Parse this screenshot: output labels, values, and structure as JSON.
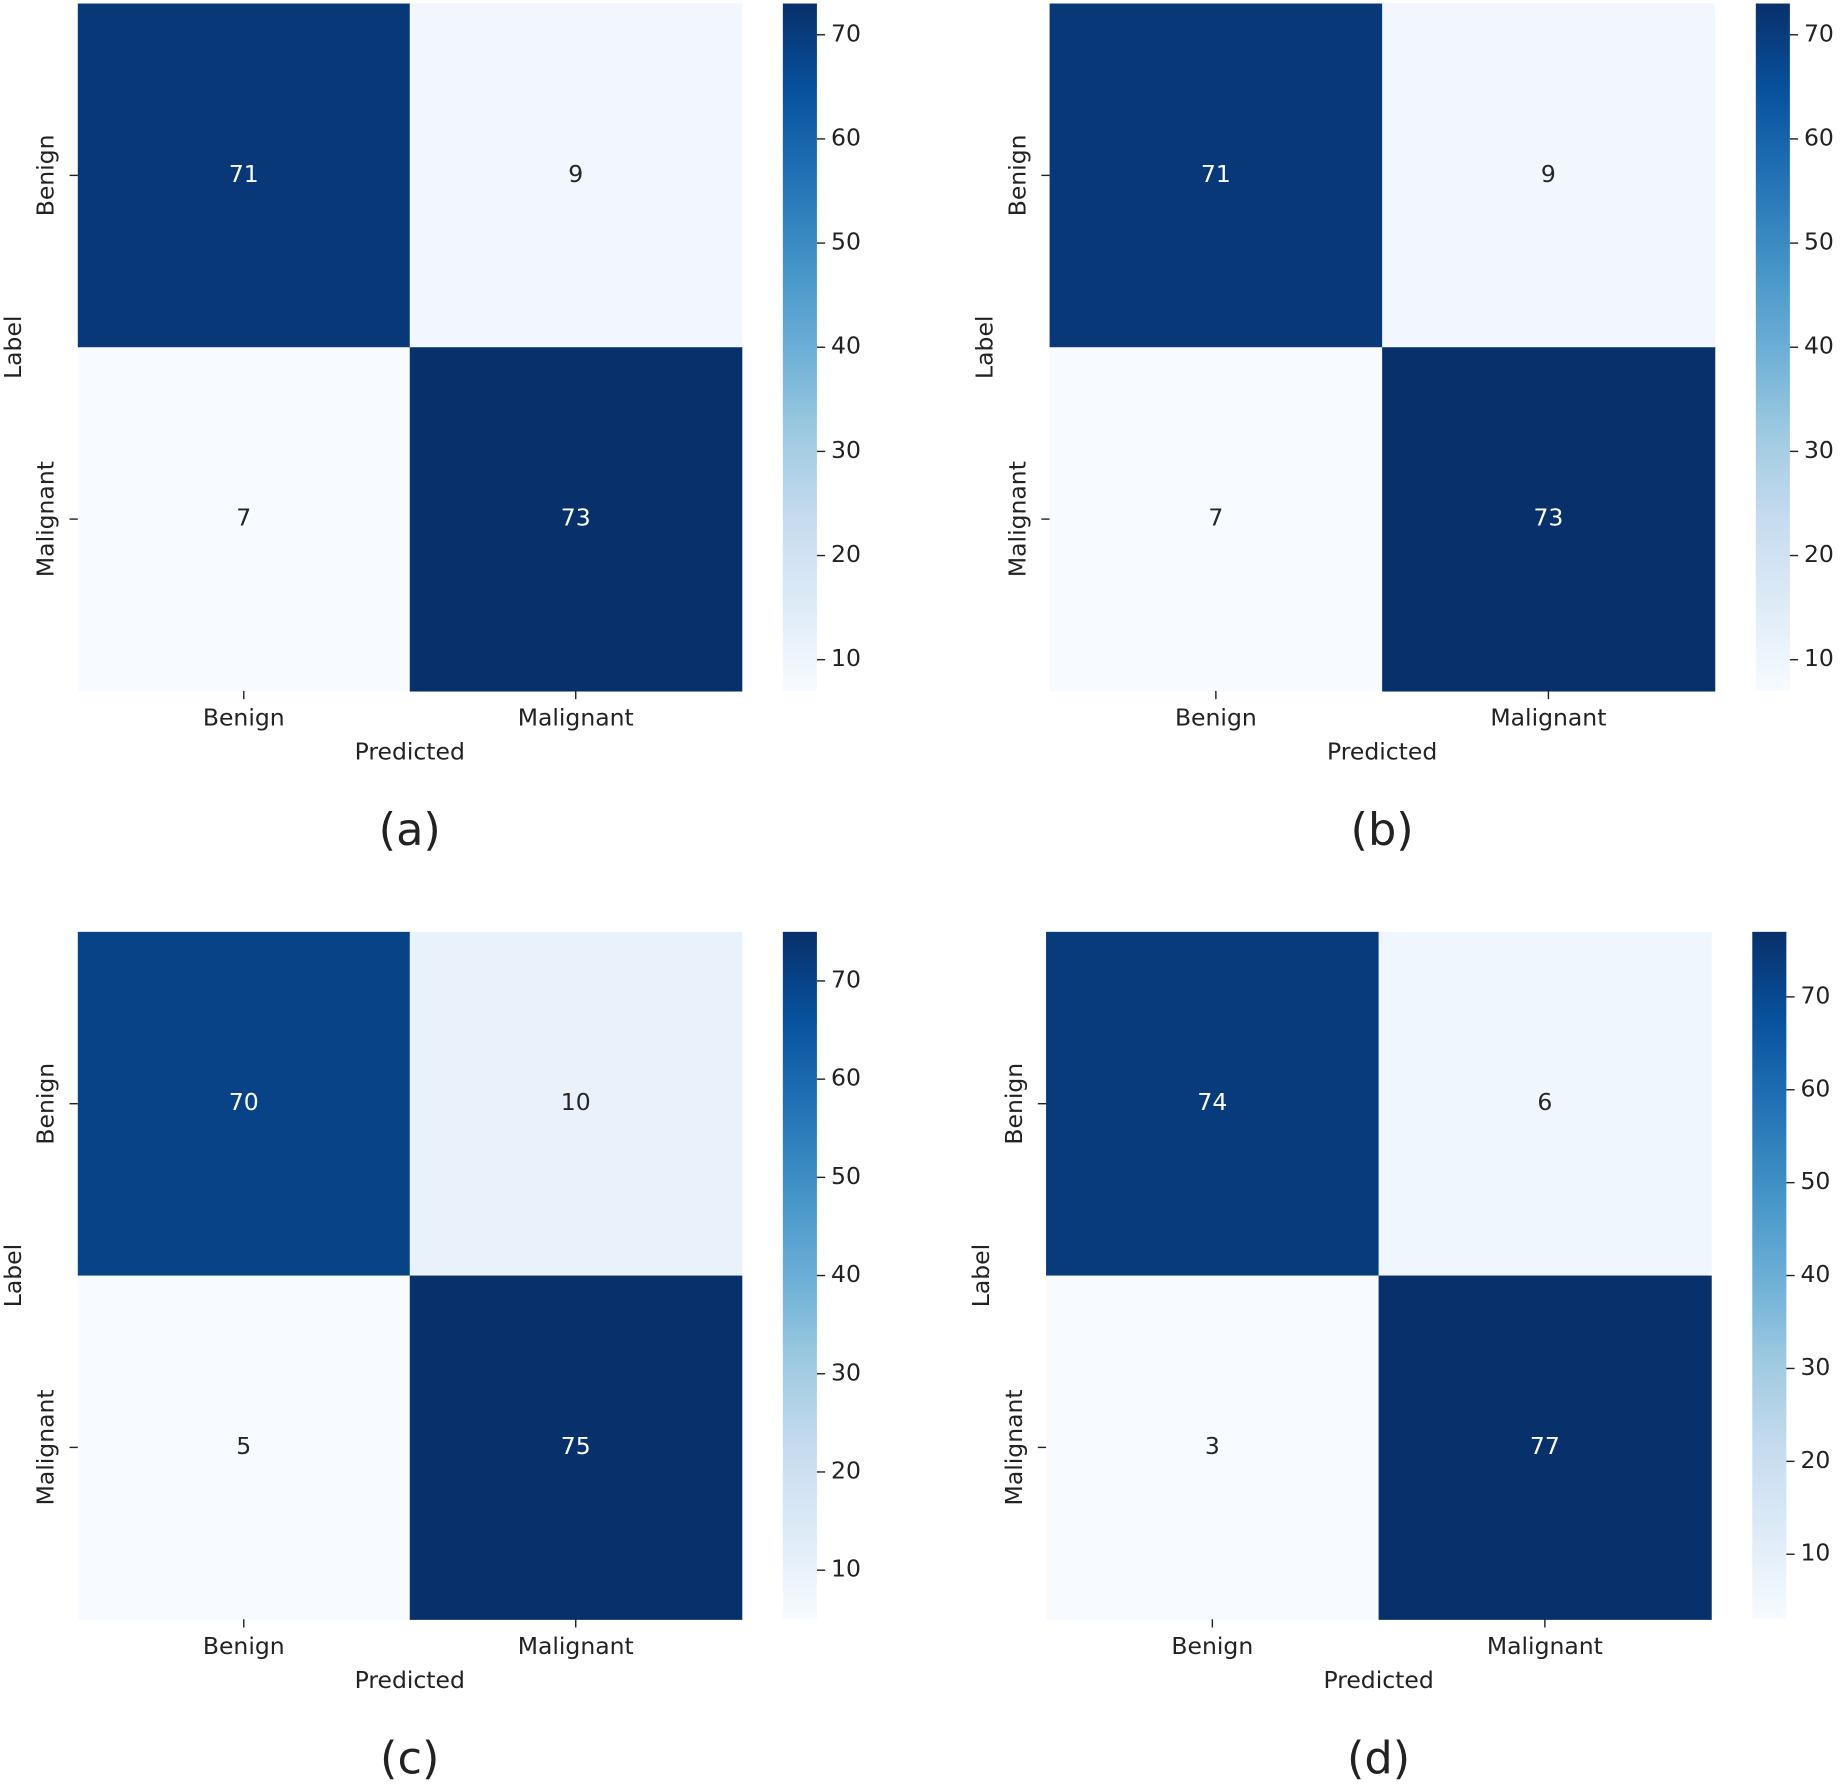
{
  "chart_data": [
    {
      "type": "heatmap",
      "caption": "(a)",
      "xlabel": "Predicted",
      "ylabel": "Label",
      "x_categories": [
        "Benign",
        "Malignant"
      ],
      "y_categories": [
        "Benign",
        "Malignant"
      ],
      "values": [
        [
          71,
          9
        ],
        [
          7,
          73
        ]
      ],
      "colormap": "Blues",
      "clim": [
        7,
        73
      ],
      "cticks": [
        10,
        20,
        30,
        40,
        50,
        60,
        70
      ]
    },
    {
      "type": "heatmap",
      "caption": "(b)",
      "xlabel": "Predicted",
      "ylabel": "Label",
      "x_categories": [
        "Benign",
        "Malignant"
      ],
      "y_categories": [
        "Benign",
        "Malignant"
      ],
      "values": [
        [
          71,
          9
        ],
        [
          7,
          73
        ]
      ],
      "colormap": "Blues",
      "clim": [
        7,
        73
      ],
      "cticks": [
        10,
        20,
        30,
        40,
        50,
        60,
        70
      ]
    },
    {
      "type": "heatmap",
      "caption": "(c)",
      "xlabel": "Predicted",
      "ylabel": "Label",
      "x_categories": [
        "Benign",
        "Malignant"
      ],
      "y_categories": [
        "Benign",
        "Malignant"
      ],
      "values": [
        [
          70,
          10
        ],
        [
          5,
          75
        ]
      ],
      "colormap": "Blues",
      "clim": [
        5,
        75
      ],
      "cticks": [
        10,
        20,
        30,
        40,
        50,
        60,
        70
      ]
    },
    {
      "type": "heatmap",
      "caption": "(d)",
      "xlabel": "Predicted",
      "ylabel": "Label",
      "x_categories": [
        "Benign",
        "Malignant"
      ],
      "y_categories": [
        "Benign",
        "Malignant"
      ],
      "values": [
        [
          74,
          6
        ],
        [
          3,
          77
        ]
      ],
      "colormap": "Blues",
      "clim": [
        3,
        77
      ],
      "cticks": [
        10,
        20,
        30,
        40,
        50,
        60,
        70
      ]
    }
  ]
}
